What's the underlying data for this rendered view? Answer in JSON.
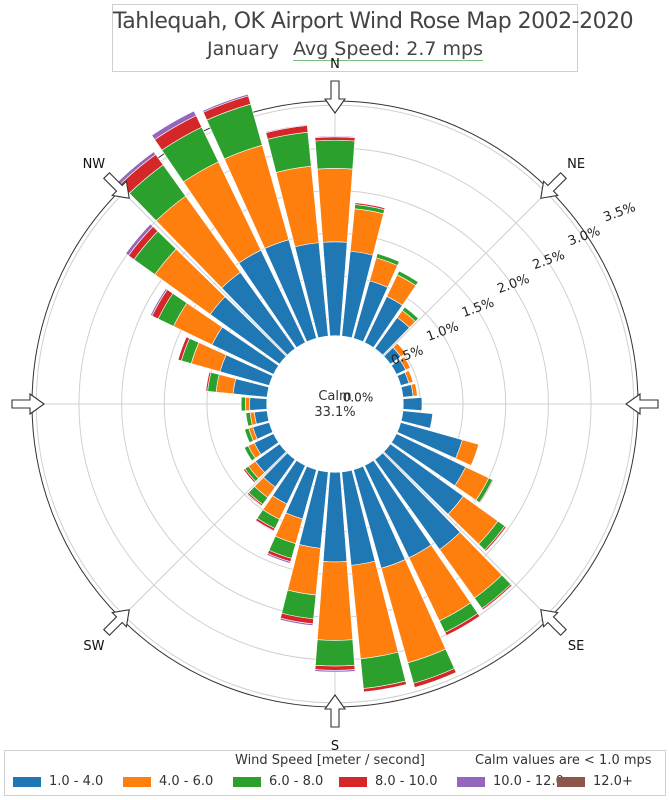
{
  "title": "Tahlequah, OK Airport  Wind Rose Map 2002-2020",
  "subtitle_month": "January",
  "subtitle_avg": "Avg Speed: 2.7 mps",
  "calm_label": "Calm",
  "calm_value": "33.1%",
  "legend": {
    "title": "Wind Speed [meter / second]",
    "calm_note": "Calm values are < 1.0 mps",
    "items": [
      {
        "label": "1.0 - 4.0",
        "color": "#1f77b4"
      },
      {
        "label": "4.0 - 6.0",
        "color": "#ff7f0e"
      },
      {
        "label": "6.0 - 8.0",
        "color": "#2ca02c"
      },
      {
        "label": "8.0 - 10.0",
        "color": "#d62728"
      },
      {
        "label": "10.0 - 12.0",
        "color": "#9467bd"
      },
      {
        "label": "12.0+",
        "color": "#8c564b"
      }
    ]
  },
  "chart_data": {
    "type": "windrose",
    "radial_ticks": [
      "0.5%",
      "1.0%",
      "1.5%",
      "2.0%",
      "2.5%",
      "3.0%",
      "3.5%"
    ],
    "radial_tick_values": [
      0.5,
      1.0,
      1.5,
      2.0,
      2.5,
      3.0,
      3.5
    ],
    "inner_hidden_tick": "0.0%",
    "radial_max": 3.55,
    "inner_hole_radius": 0.8,
    "directions": [
      "N",
      "NE",
      "E",
      "SE",
      "S",
      "SW",
      "W",
      "NW"
    ],
    "speed_bins": [
      "1.0 - 4.0",
      "4.0 - 6.0",
      "6.0 - 8.0",
      "8.0 - 10.0",
      "10.0 - 12.0",
      "12.0+"
    ],
    "bin_colors": [
      "#1f77b4",
      "#ff7f0e",
      "#2ca02c",
      "#d62728",
      "#9467bd",
      "#8c564b"
    ],
    "sector_degrees": 10,
    "sectors": [
      {
        "dir": 0,
        "values": [
          1.1,
          0.86,
          0.33,
          0.04,
          0.01,
          0.0
        ]
      },
      {
        "dir": 10,
        "values": [
          1.0,
          0.5,
          0.05,
          0.02,
          0.0,
          0.0
        ]
      },
      {
        "dir": 20,
        "values": [
          0.7,
          0.28,
          0.05,
          0.0,
          0.0,
          0.0
        ]
      },
      {
        "dir": 30,
        "values": [
          0.6,
          0.28,
          0.05,
          0.0,
          0.0,
          0.0
        ]
      },
      {
        "dir": 40,
        "values": [
          0.45,
          0.1,
          0.05,
          0.0,
          0.0,
          0.0
        ]
      },
      {
        "dir": 50,
        "values": [
          0.15,
          0.07,
          0.0,
          0.0,
          0.0,
          0.0
        ]
      },
      {
        "dir": 60,
        "values": [
          0.12,
          0.06,
          0.0,
          0.0,
          0.0,
          0.0
        ]
      },
      {
        "dir": 70,
        "values": [
          0.1,
          0.05,
          0.0,
          0.0,
          0.0,
          0.0
        ]
      },
      {
        "dir": 80,
        "values": [
          0.12,
          0.05,
          0.0,
          0.0,
          0.0,
          0.0
        ]
      },
      {
        "dir": 90,
        "values": [
          0.22,
          0.0,
          0.0,
          0.0,
          0.0,
          0.0
        ]
      },
      {
        "dir": 100,
        "values": [
          0.35,
          0.0,
          0.0,
          0.0,
          0.0,
          0.0
        ]
      },
      {
        "dir": 110,
        "values": [
          0.75,
          0.2,
          0.0,
          0.0,
          0.0,
          0.0
        ]
      },
      {
        "dir": 120,
        "values": [
          0.9,
          0.3,
          0.05,
          0.01,
          0.0,
          0.0
        ]
      },
      {
        "dir": 130,
        "values": [
          1.05,
          0.5,
          0.1,
          0.02,
          0.0,
          0.0
        ]
      },
      {
        "dir": 140,
        "values": [
          1.3,
          0.7,
          0.15,
          0.02,
          0.0,
          0.0
        ]
      },
      {
        "dir": 150,
        "values": [
          1.2,
          0.82,
          0.15,
          0.04,
          0.0,
          0.0
        ]
      },
      {
        "dir": 160,
        "values": [
          1.2,
          1.15,
          0.25,
          0.05,
          0.0,
          0.0
        ]
      },
      {
        "dir": 170,
        "values": [
          1.1,
          1.1,
          0.35,
          0.04,
          0.0,
          0.0
        ]
      },
      {
        "dir": 180,
        "values": [
          1.05,
          0.92,
          0.3,
          0.05,
          0.02,
          0.0
        ]
      },
      {
        "dir": 190,
        "values": [
          0.9,
          0.55,
          0.28,
          0.06,
          0.02,
          0.0
        ]
      },
      {
        "dir": 200,
        "values": [
          0.6,
          0.3,
          0.18,
          0.04,
          0.02,
          0.0
        ]
      },
      {
        "dir": 210,
        "values": [
          0.5,
          0.2,
          0.12,
          0.03,
          0.01,
          0.0
        ]
      },
      {
        "dir": 220,
        "values": [
          0.4,
          0.15,
          0.1,
          0.02,
          0.01,
          0.0
        ]
      },
      {
        "dir": 230,
        "values": [
          0.35,
          0.1,
          0.05,
          0.02,
          0.0,
          0.0
        ]
      },
      {
        "dir": 240,
        "values": [
          0.25,
          0.08,
          0.05,
          0.0,
          0.0,
          0.0
        ]
      },
      {
        "dir": 250,
        "values": [
          0.2,
          0.05,
          0.05,
          0.0,
          0.0,
          0.0
        ]
      },
      {
        "dir": 260,
        "values": [
          0.15,
          0.05,
          0.05,
          0.0,
          0.0,
          0.0
        ]
      },
      {
        "dir": 270,
        "values": [
          0.2,
          0.05,
          0.05,
          0.0,
          0.0,
          0.0
        ]
      },
      {
        "dir": 280,
        "values": [
          0.4,
          0.2,
          0.1,
          0.02,
          0.0,
          0.0
        ]
      },
      {
        "dir": 290,
        "values": [
          0.6,
          0.35,
          0.12,
          0.04,
          0.0,
          0.0
        ]
      },
      {
        "dir": 300,
        "values": [
          0.8,
          0.5,
          0.2,
          0.08,
          0.02,
          0.0
        ]
      },
      {
        "dir": 310,
        "values": [
          1.0,
          0.8,
          0.3,
          0.08,
          0.04,
          0.0
        ]
      },
      {
        "dir": 320,
        "values": [
          1.1,
          1.1,
          0.45,
          0.15,
          0.04,
          0.0
        ]
      },
      {
        "dir": 330,
        "values": [
          1.2,
          1.15,
          0.45,
          0.15,
          0.06,
          0.0
        ]
      },
      {
        "dir": 340,
        "values": [
          1.2,
          1.15,
          0.5,
          0.1,
          0.02,
          0.0
        ]
      },
      {
        "dir": 350,
        "values": [
          1.1,
          0.9,
          0.4,
          0.08,
          0.01,
          0.0
        ]
      }
    ]
  }
}
